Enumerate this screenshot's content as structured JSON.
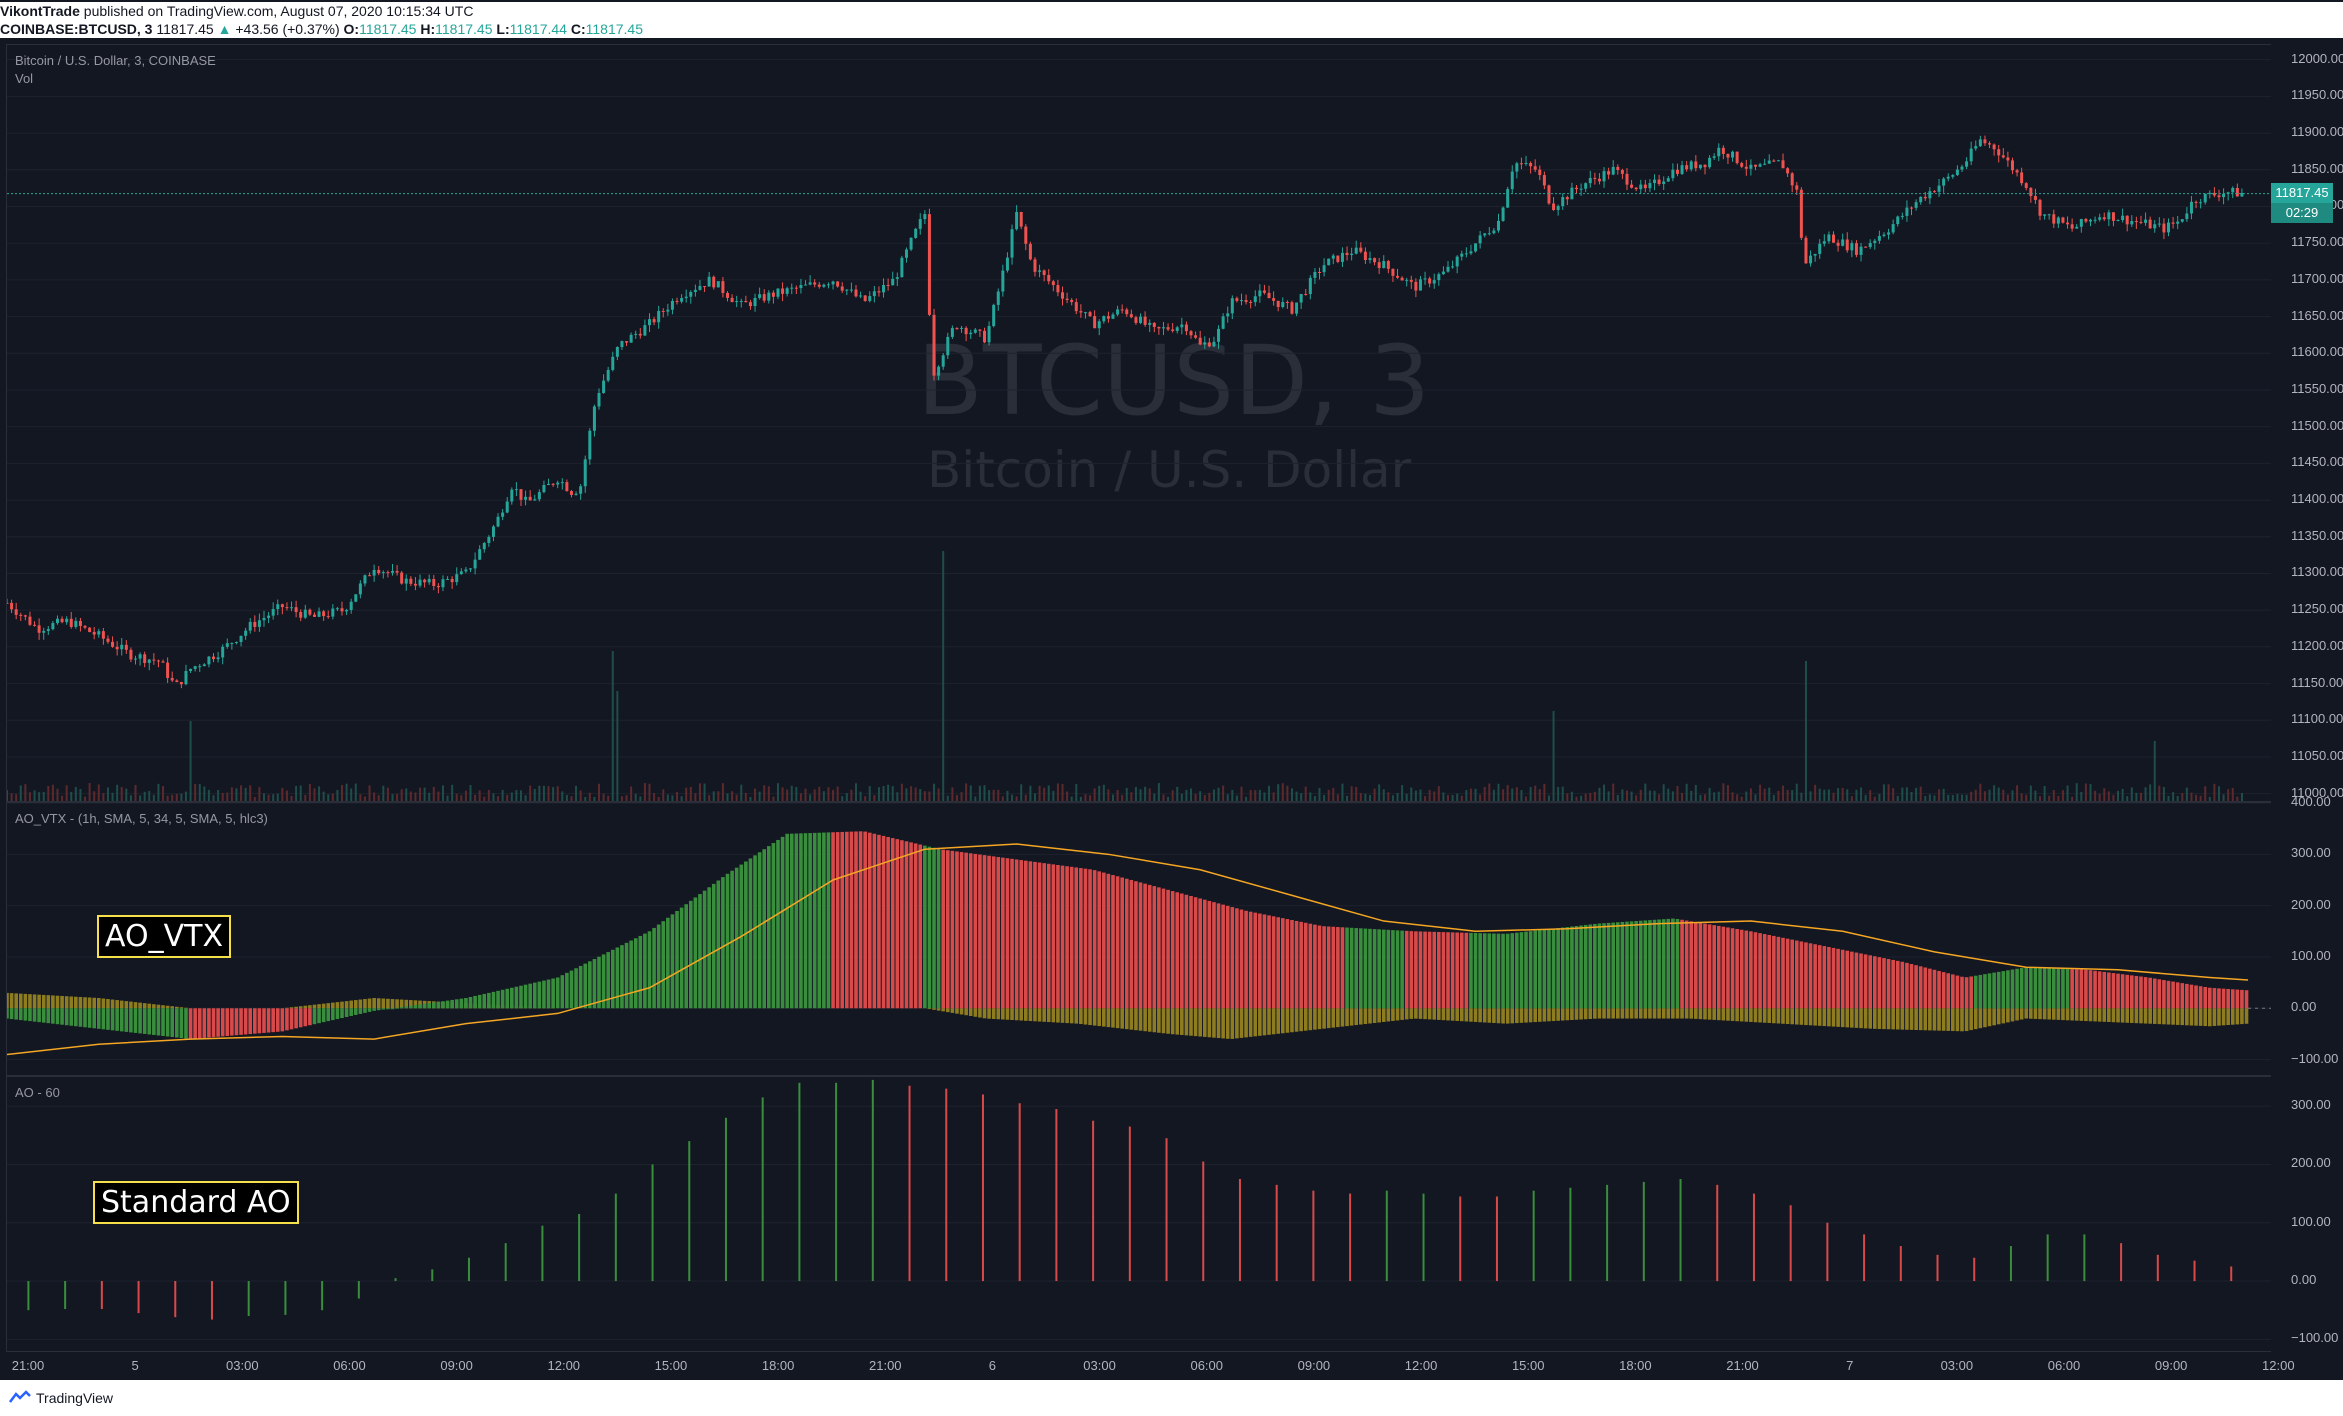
{
  "header": {
    "author": "VikontTrade",
    "published": "published on TradingView.com, August 07, 2020 10:15:34 UTC",
    "symbol": "COINBASE:BTCUSD, 3",
    "last": "11817.45",
    "arrow": "▲",
    "change": "+43.56 (+0.37%)",
    "o_label": "O:",
    "o_val": "11817.45",
    "h_label": "H:",
    "h_val": "11817.45",
    "l_label": "L:",
    "l_val": "11817.44",
    "c_label": "C:",
    "c_val": "11817.45"
  },
  "watermark": {
    "symbol": "BTCUSD, 3",
    "name": "Bitcoin / U.S. Dollar"
  },
  "price_tag": {
    "price": "11817.45",
    "countdown": "02:29"
  },
  "labels": {
    "box1": "AO_VTX",
    "box2": "Standard AO"
  },
  "footer": {
    "brand": "TradingView",
    "logo_icon": "tradingview-logo-icon"
  },
  "colors": {
    "up": "#26a69a",
    "down": "#ef5350",
    "ao_green": "#388e3c",
    "ao_red": "#d84a4a",
    "signal": "#f5a623",
    "gold": "#b8a020"
  },
  "chart_data": [
    {
      "type": "candlestick",
      "title": "Bitcoin / U.S. Dollar, 3, COINBASE",
      "volume_label": "Vol",
      "ylim": [
        10990,
        12020
      ],
      "y_ticks": [
        "12000.00",
        "11950.00",
        "11900.00",
        "11850.00",
        "11800.00",
        "11750.00",
        "11700.00",
        "11650.00",
        "11600.00",
        "11550.00",
        "11500.00",
        "11450.00",
        "11400.00",
        "11350.00",
        "11300.00",
        "11250.00",
        "11200.00",
        "11150.00",
        "11100.00",
        "11050.00",
        "11000.00"
      ],
      "x_ticks": [
        "21:00",
        "5",
        "03:00",
        "06:00",
        "09:00",
        "12:00",
        "15:00",
        "18:00",
        "21:00",
        "6",
        "03:00",
        "06:00",
        "09:00",
        "12:00",
        "15:00",
        "18:00",
        "21:00",
        "7",
        "03:00",
        "06:00",
        "09:00",
        "12:00"
      ],
      "last_price": 11817.45,
      "price_path": [
        [
          0,
          11260
        ],
        [
          20,
          11225
        ],
        [
          40,
          11235
        ],
        [
          60,
          11215
        ],
        [
          80,
          11190
        ],
        [
          100,
          11180
        ],
        [
          110,
          11145
        ],
        [
          120,
          11170
        ],
        [
          140,
          11195
        ],
        [
          160,
          11230
        ],
        [
          180,
          11255
        ],
        [
          200,
          11240
        ],
        [
          220,
          11250
        ],
        [
          240,
          11310
        ],
        [
          260,
          11290
        ],
        [
          280,
          11285
        ],
        [
          300,
          11300
        ],
        [
          320,
          11370
        ],
        [
          330,
          11420
        ],
        [
          340,
          11395
        ],
        [
          360,
          11430
        ],
        [
          370,
          11410
        ],
        [
          375,
          11420
        ],
        [
          385,
          11540
        ],
        [
          400,
          11610
        ],
        [
          420,
          11640
        ],
        [
          440,
          11680
        ],
        [
          460,
          11700
        ],
        [
          480,
          11665
        ],
        [
          500,
          11680
        ],
        [
          520,
          11690
        ],
        [
          540,
          11700
        ],
        [
          560,
          11670
        ],
        [
          580,
          11700
        ],
        [
          595,
          11770
        ],
        [
          600,
          11790
        ],
        [
          605,
          11570
        ],
        [
          620,
          11640
        ],
        [
          640,
          11620
        ],
        [
          650,
          11700
        ],
        [
          660,
          11790
        ],
        [
          670,
          11720
        ],
        [
          690,
          11680
        ],
        [
          710,
          11640
        ],
        [
          730,
          11660
        ],
        [
          750,
          11630
        ],
        [
          770,
          11640
        ],
        [
          780,
          11610
        ],
        [
          790,
          11620
        ],
        [
          800,
          11670
        ],
        [
          820,
          11680
        ],
        [
          840,
          11660
        ],
        [
          860,
          11720
        ],
        [
          880,
          11740
        ],
        [
          900,
          11720
        ],
        [
          920,
          11690
        ],
        [
          940,
          11710
        ],
        [
          960,
          11750
        ],
        [
          975,
          11780
        ],
        [
          985,
          11860
        ],
        [
          1000,
          11850
        ],
        [
          1010,
          11800
        ],
        [
          1030,
          11830
        ],
        [
          1050,
          11850
        ],
        [
          1070,
          11820
        ],
        [
          1090,
          11850
        ],
        [
          1110,
          11860
        ],
        [
          1120,
          11880
        ],
        [
          1140,
          11850
        ],
        [
          1160,
          11860
        ],
        [
          1170,
          11820
        ],
        [
          1175,
          11720
        ],
        [
          1190,
          11760
        ],
        [
          1210,
          11740
        ],
        [
          1230,
          11770
        ],
        [
          1250,
          11810
        ],
        [
          1270,
          11840
        ],
        [
          1280,
          11860
        ],
        [
          1290,
          11890
        ],
        [
          1300,
          11880
        ],
        [
          1320,
          11830
        ],
        [
          1330,
          11790
        ],
        [
          1350,
          11770
        ],
        [
          1370,
          11790
        ],
        [
          1390,
          11780
        ],
        [
          1410,
          11770
        ],
        [
          1420,
          11780
        ],
        [
          1430,
          11810
        ],
        [
          1450,
          11820
        ],
        [
          1465,
          11817
        ]
      ],
      "volume_spikes": [
        [
          120,
          80
        ],
        [
          395,
          150
        ],
        [
          400,
          110
        ],
        [
          612,
          250
        ],
        [
          1012,
          90
        ],
        [
          1175,
          140
        ],
        [
          1403,
          60
        ]
      ]
    },
    {
      "type": "bar",
      "title": "AO_VTX - (1h, SMA, 5, 34, 5, SMA, 5, hlc3)",
      "ylim": [
        -130,
        400
      ],
      "y_ticks": [
        "400.00",
        "300.00",
        "200.00",
        "100.00",
        "0.00",
        "−100.00"
      ],
      "ao_path": [
        [
          0,
          -20
        ],
        [
          60,
          -40
        ],
        [
          120,
          -60
        ],
        [
          180,
          -45
        ],
        [
          240,
          -5
        ],
        [
          300,
          20
        ],
        [
          360,
          60
        ],
        [
          420,
          150
        ],
        [
          470,
          260
        ],
        [
          510,
          340
        ],
        [
          560,
          345
        ],
        [
          610,
          310
        ],
        [
          660,
          290
        ],
        [
          710,
          270
        ],
        [
          760,
          230
        ],
        [
          810,
          190
        ],
        [
          860,
          160
        ],
        [
          920,
          150
        ],
        [
          980,
          145
        ],
        [
          1040,
          165
        ],
        [
          1090,
          175
        ],
        [
          1140,
          150
        ],
        [
          1190,
          120
        ],
        [
          1240,
          90
        ],
        [
          1280,
          60
        ],
        [
          1320,
          80
        ],
        [
          1360,
          75
        ],
        [
          1400,
          60
        ],
        [
          1440,
          40
        ],
        [
          1465,
          35
        ]
      ],
      "colored_segments": [
        [
          0,
          120,
          "green"
        ],
        [
          120,
          200,
          "red"
        ],
        [
          200,
          540,
          "green"
        ],
        [
          540,
          600,
          "red"
        ],
        [
          600,
          612,
          "green"
        ],
        [
          612,
          875,
          "red"
        ],
        [
          875,
          915,
          "green"
        ],
        [
          915,
          955,
          "red"
        ],
        [
          955,
          1075,
          "green"
        ],
        [
          1075,
          1095,
          "green"
        ],
        [
          1095,
          1285,
          "red"
        ],
        [
          1285,
          1350,
          "green"
        ],
        [
          1350,
          1465,
          "red"
        ]
      ],
      "signal_path": [
        [
          0,
          -90
        ],
        [
          60,
          -70
        ],
        [
          120,
          -60
        ],
        [
          180,
          -55
        ],
        [
          240,
          -60
        ],
        [
          300,
          -30
        ],
        [
          360,
          -10
        ],
        [
          420,
          40
        ],
        [
          480,
          140
        ],
        [
          540,
          250
        ],
        [
          600,
          310
        ],
        [
          660,
          320
        ],
        [
          720,
          300
        ],
        [
          780,
          270
        ],
        [
          840,
          220
        ],
        [
          900,
          170
        ],
        [
          960,
          150
        ],
        [
          1020,
          155
        ],
        [
          1080,
          165
        ],
        [
          1140,
          170
        ],
        [
          1200,
          150
        ],
        [
          1260,
          110
        ],
        [
          1320,
          80
        ],
        [
          1380,
          75
        ],
        [
          1440,
          60
        ],
        [
          1465,
          55
        ]
      ],
      "gold_band": [
        [
          0,
          30
        ],
        [
          60,
          20
        ],
        [
          120,
          0
        ],
        [
          180,
          0
        ],
        [
          240,
          20
        ],
        [
          300,
          10
        ],
        [
          360,
          0
        ],
        [
          420,
          0
        ],
        [
          600,
          0
        ],
        [
          640,
          -20
        ],
        [
          700,
          -30
        ],
        [
          760,
          -50
        ],
        [
          800,
          -60
        ],
        [
          860,
          -40
        ],
        [
          920,
          -20
        ],
        [
          980,
          -30
        ],
        [
          1040,
          -20
        ],
        [
          1100,
          -20
        ],
        [
          1160,
          -30
        ],
        [
          1220,
          -40
        ],
        [
          1280,
          -45
        ],
        [
          1320,
          -20
        ],
        [
          1400,
          -30
        ],
        [
          1440,
          -35
        ],
        [
          1465,
          -30
        ]
      ]
    },
    {
      "type": "bar",
      "title": "AO - 60",
      "ylim": [
        -120,
        350
      ],
      "y_ticks": [
        "300.00",
        "200.00",
        "100.00",
        "0.00",
        "−100.00"
      ],
      "bars": [
        [
          14,
          -50,
          "green"
        ],
        [
          38,
          -48,
          "green"
        ],
        [
          62,
          -48,
          "red"
        ],
        [
          86,
          -55,
          "red"
        ],
        [
          110,
          -62,
          "red"
        ],
        [
          134,
          -66,
          "red"
        ],
        [
          158,
          -60,
          "green"
        ],
        [
          182,
          -58,
          "green"
        ],
        [
          206,
          -50,
          "green"
        ],
        [
          230,
          -30,
          "green"
        ],
        [
          254,
          5,
          "green"
        ],
        [
          278,
          20,
          "green"
        ],
        [
          302,
          40,
          "green"
        ],
        [
          326,
          65,
          "green"
        ],
        [
          350,
          95,
          "green"
        ],
        [
          374,
          115,
          "green"
        ],
        [
          398,
          150,
          "green"
        ],
        [
          422,
          200,
          "green"
        ],
        [
          446,
          240,
          "green"
        ],
        [
          470,
          280,
          "green"
        ],
        [
          494,
          315,
          "green"
        ],
        [
          518,
          340,
          "green"
        ],
        [
          542,
          340,
          "green"
        ],
        [
          566,
          345,
          "green"
        ],
        [
          590,
          335,
          "red"
        ],
        [
          614,
          330,
          "red"
        ],
        [
          638,
          320,
          "red"
        ],
        [
          662,
          305,
          "red"
        ],
        [
          686,
          295,
          "red"
        ],
        [
          710,
          275,
          "red"
        ],
        [
          734,
          265,
          "red"
        ],
        [
          758,
          245,
          "red"
        ],
        [
          782,
          205,
          "red"
        ],
        [
          806,
          175,
          "red"
        ],
        [
          830,
          165,
          "red"
        ],
        [
          854,
          155,
          "red"
        ],
        [
          878,
          150,
          "red"
        ],
        [
          902,
          155,
          "green"
        ],
        [
          926,
          150,
          "green"
        ],
        [
          950,
          145,
          "red"
        ],
        [
          974,
          145,
          "red"
        ],
        [
          998,
          155,
          "green"
        ],
        [
          1022,
          160,
          "green"
        ],
        [
          1046,
          165,
          "green"
        ],
        [
          1070,
          170,
          "green"
        ],
        [
          1094,
          175,
          "green"
        ],
        [
          1118,
          165,
          "red"
        ],
        [
          1142,
          150,
          "red"
        ],
        [
          1166,
          130,
          "red"
        ],
        [
          1190,
          100,
          "red"
        ],
        [
          1214,
          80,
          "red"
        ],
        [
          1238,
          60,
          "red"
        ],
        [
          1262,
          45,
          "red"
        ],
        [
          1286,
          40,
          "red"
        ],
        [
          1310,
          60,
          "green"
        ],
        [
          1334,
          80,
          "green"
        ],
        [
          1358,
          80,
          "green"
        ],
        [
          1382,
          65,
          "red"
        ],
        [
          1406,
          45,
          "red"
        ],
        [
          1430,
          35,
          "red"
        ],
        [
          1454,
          25,
          "red"
        ]
      ]
    }
  ]
}
